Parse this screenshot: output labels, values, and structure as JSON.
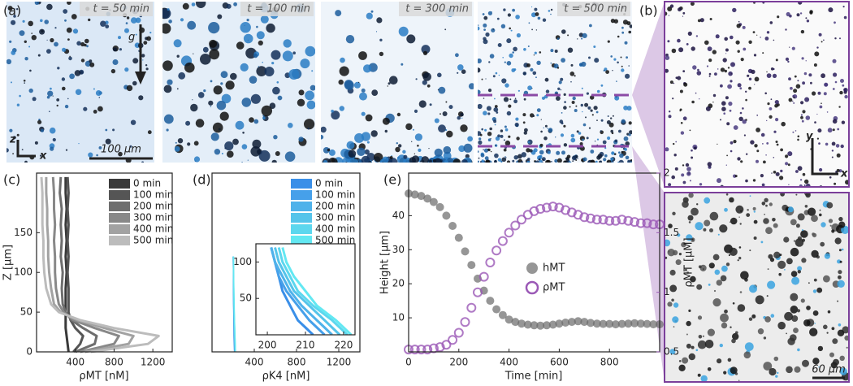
{
  "panel_a": {
    "label": "(a)",
    "frames": [
      "t = 50 min",
      "t = 100 min",
      "t = 300 min",
      "t = 500 min"
    ],
    "gravity": "g",
    "axis_z": "z",
    "axis_x": "x",
    "scale_bar": "100 µm"
  },
  "panel_b": {
    "label": "(b)",
    "axis_y": "y",
    "axis_x": "x",
    "scale_bar": "60 µm"
  },
  "chart_data": [
    {
      "type": "line",
      "panel_label": "(c)",
      "orientation": "horizontal",
      "x_label": "ρMT [nM]",
      "y_label": "Z [µm]",
      "y": [
        0,
        10,
        20,
        30,
        40,
        50,
        60,
        80,
        100,
        120,
        140,
        160,
        180,
        200,
        220
      ],
      "series": [
        {
          "name": "0 min",
          "color": "#3a3a3a",
          "values": [
            330,
            320,
            310,
            300,
            300,
            300,
            300,
            300,
            310,
            300,
            310,
            300,
            310,
            300,
            300
          ]
        },
        {
          "name": "100 min",
          "color": "#555555",
          "values": [
            380,
            450,
            480,
            400,
            350,
            330,
            330,
            330,
            320,
            330,
            320,
            330,
            320,
            330,
            320
          ]
        },
        {
          "name": "200 min",
          "color": "#6e6e6e",
          "values": [
            400,
            600,
            620,
            480,
            360,
            300,
            270,
            260,
            270,
            250,
            260,
            250,
            260,
            240,
            250
          ]
        },
        {
          "name": "300 min",
          "color": "#888888",
          "values": [
            450,
            800,
            850,
            600,
            380,
            280,
            230,
            200,
            190,
            190,
            180,
            190,
            180,
            180,
            170
          ]
        },
        {
          "name": "400 min",
          "color": "#a2a2a2",
          "values": [
            500,
            950,
            1000,
            700,
            420,
            250,
            180,
            150,
            130,
            120,
            120,
            110,
            110,
            100,
            100
          ]
        },
        {
          "name": "500 min",
          "color": "#bcbcbc",
          "values": [
            560,
            1150,
            1260,
            800,
            450,
            230,
            150,
            100,
            80,
            70,
            70,
            60,
            60,
            60,
            50
          ]
        }
      ],
      "xlim": [
        0,
        1400
      ],
      "xticks": [
        400,
        800,
        1200
      ],
      "ylim": [
        0,
        225
      ],
      "yticks": [
        0,
        50,
        100,
        150
      ],
      "legend": "upper right"
    },
    {
      "type": "line",
      "panel_label": "(d)",
      "orientation": "horizontal",
      "x_label": "ρK4 [nM]",
      "y": [
        0,
        10,
        20,
        40,
        60,
        80,
        100,
        120
      ],
      "series": [
        {
          "name": "0 min",
          "color": "#3a8fe8",
          "values": [
            212,
            210,
            208,
            206,
            204,
            203,
            202,
            201
          ]
        },
        {
          "name": "100 min",
          "color": "#46a0ea",
          "values": [
            215,
            213,
            211,
            208,
            205,
            203,
            202,
            201
          ]
        },
        {
          "name": "200 min",
          "color": "#4fb2ea",
          "values": [
            217,
            215,
            213,
            209,
            206,
            204,
            202,
            201
          ]
        },
        {
          "name": "300 min",
          "color": "#55c4ea",
          "values": [
            219,
            217,
            215,
            211,
            207,
            205,
            203,
            202
          ]
        },
        {
          "name": "400 min",
          "color": "#5cd7ee",
          "values": [
            221,
            219,
            217,
            212,
            208,
            206,
            204,
            203
          ]
        },
        {
          "name": "500 min",
          "color": "#63e8f2",
          "values": [
            222,
            220,
            218,
            213,
            210,
            207,
            205,
            204
          ]
        }
      ],
      "xlim": [
        0,
        1400
      ],
      "xticks": [
        400,
        800,
        1200
      ],
      "ylim": [
        0,
        225
      ],
      "legend": "upper right",
      "inset": {
        "xlim": [
          197,
          223
        ],
        "xticks": [
          200,
          210,
          220
        ],
        "ylim": [
          0,
          125
        ],
        "yticks": [
          50,
          100
        ]
      }
    },
    {
      "type": "scatter",
      "panel_label": "(e)",
      "x_label": "Time [min]",
      "y_label": "Height [µm]",
      "y2_label": "ρMT [µM]",
      "x": [
        0,
        25,
        50,
        75,
        100,
        125,
        150,
        175,
        200,
        225,
        250,
        275,
        300,
        325,
        350,
        375,
        400,
        425,
        450,
        475,
        500,
        525,
        550,
        575,
        600,
        625,
        650,
        675,
        700,
        725,
        750,
        775,
        800,
        825,
        850,
        875,
        900,
        925,
        950,
        975,
        1000
      ],
      "series": [
        {
          "name": "hMT",
          "color": "#6a6a6a",
          "values": [
            46.5,
            46.2,
            45.8,
            45,
            44,
            42.5,
            40,
            37,
            33.5,
            29.5,
            25.5,
            21.5,
            18,
            15,
            12.5,
            10.8,
            9.5,
            8.8,
            8.3,
            8,
            7.8,
            7.7,
            7.8,
            8,
            8.3,
            8.6,
            8.8,
            9,
            8.8,
            8.5,
            8.3,
            8.2,
            8.2,
            8.1,
            8.2,
            8.3,
            8.4,
            8.3,
            8.2,
            8.1,
            8.1
          ]
        },
        {
          "name": "ρMT",
          "color": "#9b59b6",
          "axis": "y2",
          "values": [
            0.52,
            0.52,
            0.52,
            0.52,
            0.53,
            0.54,
            0.56,
            0.6,
            0.66,
            0.75,
            0.87,
            1.0,
            1.13,
            1.25,
            1.35,
            1.43,
            1.5,
            1.56,
            1.61,
            1.65,
            1.68,
            1.7,
            1.71,
            1.72,
            1.71,
            1.69,
            1.67,
            1.65,
            1.63,
            1.62,
            1.61,
            1.61,
            1.6,
            1.6,
            1.61,
            1.6,
            1.59,
            1.58,
            1.58,
            1.57,
            1.57
          ]
        }
      ],
      "xlim": [
        0,
        1000
      ],
      "xticks": [
        0,
        200,
        400,
        600,
        800
      ],
      "ylim": [
        0,
        52.5
      ],
      "yticks": [
        10,
        20,
        30,
        40
      ],
      "y2lim": [
        0.5,
        2
      ],
      "y2ticks": [
        0.5,
        1,
        1.5,
        2
      ],
      "legend": "center right"
    }
  ]
}
